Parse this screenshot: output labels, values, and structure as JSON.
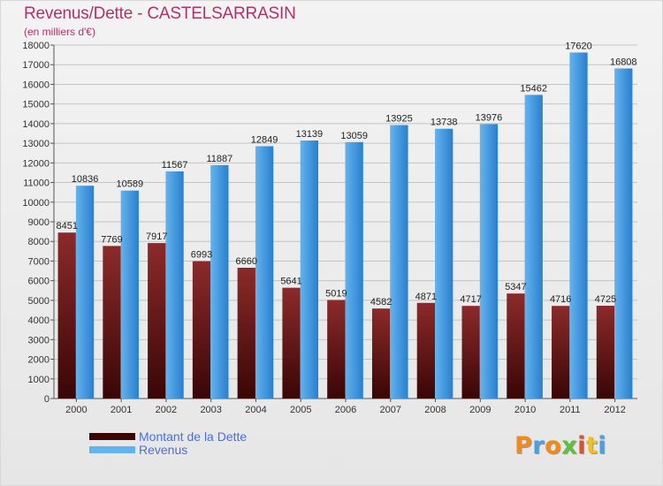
{
  "title": "Revenus/Dette - CASTELSARRASIN",
  "subtitle": "(en milliers d'€)",
  "brand": {
    "text": "Proxiti",
    "letter_colors": [
      "#f08a1c",
      "#4aa0e0",
      "#f08a1c",
      "#5fbf3f",
      "#e0502a",
      "#f0c020",
      "#4aa0e0"
    ]
  },
  "colors": {
    "dette_top": "#8c2a2a",
    "dette_bottom": "#3a0606",
    "revenus_top": "#63b3ee",
    "revenus_bottom": "#2a7fce",
    "title": "#b0326a",
    "legend_text": "#4a70d8"
  },
  "chart_data": {
    "type": "bar",
    "categories": [
      "2000",
      "2001",
      "2002",
      "2003",
      "2004",
      "2005",
      "2006",
      "2007",
      "2008",
      "2009",
      "2010",
      "2011",
      "2012"
    ],
    "series": [
      {
        "name": "Montant de la Dette",
        "values": [
          8451,
          7769,
          7917,
          6993,
          6660,
          5641,
          5019,
          4582,
          4871,
          4717,
          5347,
          4716,
          4725
        ],
        "labels": [
          "8451",
          "7769",
          "7917",
          "6993",
          "6660",
          "5641",
          "5019",
          "4582",
          "4871",
          "4717",
          "5347",
          "4716",
          "4725"
        ]
      },
      {
        "name": "Revenus",
        "values": [
          10836,
          10589,
          11567,
          11887,
          12849,
          13139,
          13059,
          13925,
          13738,
          13976,
          15462,
          17620,
          16808
        ],
        "labels": [
          "10836",
          "10589",
          "11567",
          "11887",
          "12849",
          "13139",
          "13059",
          "13925",
          "13738",
          "13976",
          "15462",
          "17620",
          "16808"
        ]
      }
    ],
    "yticks": [
      0,
      1000,
      2000,
      3000,
      4000,
      5000,
      6000,
      7000,
      8000,
      9000,
      10000,
      11000,
      12000,
      13000,
      14000,
      15000,
      16000,
      17000,
      18000
    ],
    "ylim": [
      0,
      18000
    ],
    "grid": true,
    "legend_position": "bottom-left"
  }
}
